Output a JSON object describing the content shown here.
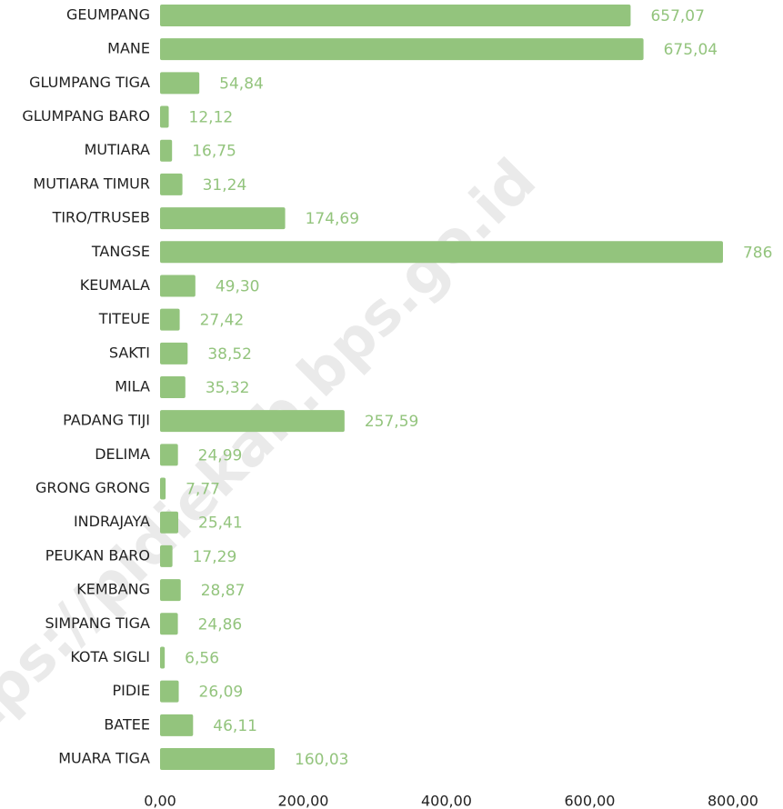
{
  "chart_data": {
    "type": "bar",
    "orientation": "horizontal",
    "watermark": "https://pidiekab.bps.go.id",
    "categories": [
      "GEUMPANG",
      "MANE",
      "GLUMPANG TIGA",
      "GLUMPANG BARO",
      "MUTIARA",
      "MUTIARA TIMUR",
      "TIRO/TRUSEB",
      "TANGSE",
      "KEUMALA",
      "TITEUE",
      "SAKTI",
      "MILA",
      "PADANG TIJI",
      "DELIMA",
      "GRONG GRONG",
      "INDRAJAYA",
      "PEUKAN BARO",
      "KEMBANG",
      "SIMPANG TIGA",
      "KOTA SIGLI",
      "PIDIE",
      "BATEE",
      "MUARA TIGA"
    ],
    "values": [
      657.07,
      675.04,
      54.84,
      12.12,
      16.75,
      31.24,
      174.69,
      786,
      49.3,
      27.42,
      38.52,
      35.32,
      257.59,
      24.99,
      7.77,
      25.41,
      17.29,
      28.87,
      24.86,
      6.56,
      26.09,
      46.11,
      160.03
    ],
    "value_labels": [
      "657,07",
      "675,04",
      "54,84",
      "12,12",
      "16,75",
      "31,24",
      "174,69",
      "786",
      "49,30",
      "27,42",
      "38,52",
      "35,32",
      "257,59",
      "24,99",
      "7,77",
      "25,41",
      "17,29",
      "28,87",
      "24,86",
      "6,56",
      "26,09",
      "46,11",
      "160,03"
    ],
    "color": "#93c47d",
    "xlim": [
      0,
      800
    ],
    "xticks": [
      {
        "value": 0,
        "label": "0,00"
      },
      {
        "value": 200,
        "label": "200,00"
      },
      {
        "value": 400,
        "label": "400,00"
      },
      {
        "value": 600,
        "label": "600,00"
      },
      {
        "value": 800,
        "label": "800,00"
      }
    ],
    "grid": false
  }
}
